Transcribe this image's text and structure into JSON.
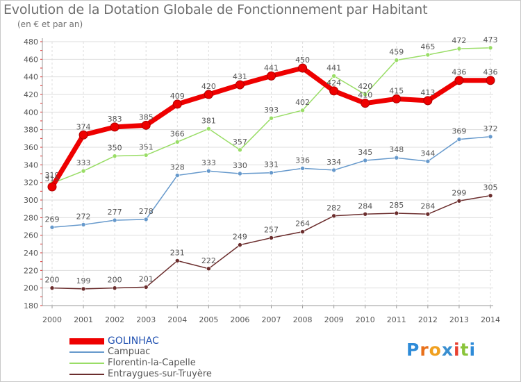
{
  "chart_data": {
    "type": "line",
    "title": "Evolution de la Dotation Globale de Fonctionnement par Habitant",
    "subtitle": "(en € et par an)",
    "xlabel": "",
    "ylabel": "",
    "x": [
      "2000",
      "2001",
      "2002",
      "2003",
      "2004",
      "2005",
      "2006",
      "2007",
      "2008",
      "2009",
      "2010",
      "2011",
      "2012",
      "2013",
      "2014"
    ],
    "ylim": [
      180,
      480
    ],
    "yticks": [
      180,
      200,
      220,
      240,
      260,
      280,
      300,
      320,
      340,
      360,
      380,
      400,
      420,
      440,
      460,
      480
    ],
    "series": [
      {
        "name": "GOLINHAC",
        "color": "#ee0000",
        "values": [
          315,
          374,
          383,
          385,
          409,
          420,
          431,
          441,
          450,
          424,
          410,
          415,
          413,
          436,
          436
        ]
      },
      {
        "name": "Campuac",
        "color": "#6699cc",
        "values": [
          269,
          272,
          277,
          278,
          328,
          333,
          330,
          331,
          336,
          334,
          345,
          348,
          344,
          369,
          372
        ]
      },
      {
        "name": "Florentin-la-Capelle",
        "color": "#99dd66",
        "values": [
          319,
          333,
          350,
          351,
          366,
          381,
          357,
          393,
          402,
          441,
          420,
          459,
          465,
          472,
          473
        ]
      },
      {
        "name": "Entraygues-sur-Truyère",
        "color": "#6b2d2d",
        "values": [
          200,
          199,
          200,
          201,
          231,
          222,
          249,
          257,
          264,
          282,
          284,
          285,
          284,
          299,
          305
        ]
      }
    ],
    "grid": true,
    "legend_position": "bottom-left"
  },
  "brand": {
    "letters": [
      "P",
      "r",
      "o",
      "x",
      "i",
      "t",
      "i"
    ],
    "colors": [
      "#2e8bd8",
      "#e8701a",
      "#f0a020",
      "#3a8fd0",
      "#e84030",
      "#8ac43a",
      "#2e8bd8"
    ]
  }
}
